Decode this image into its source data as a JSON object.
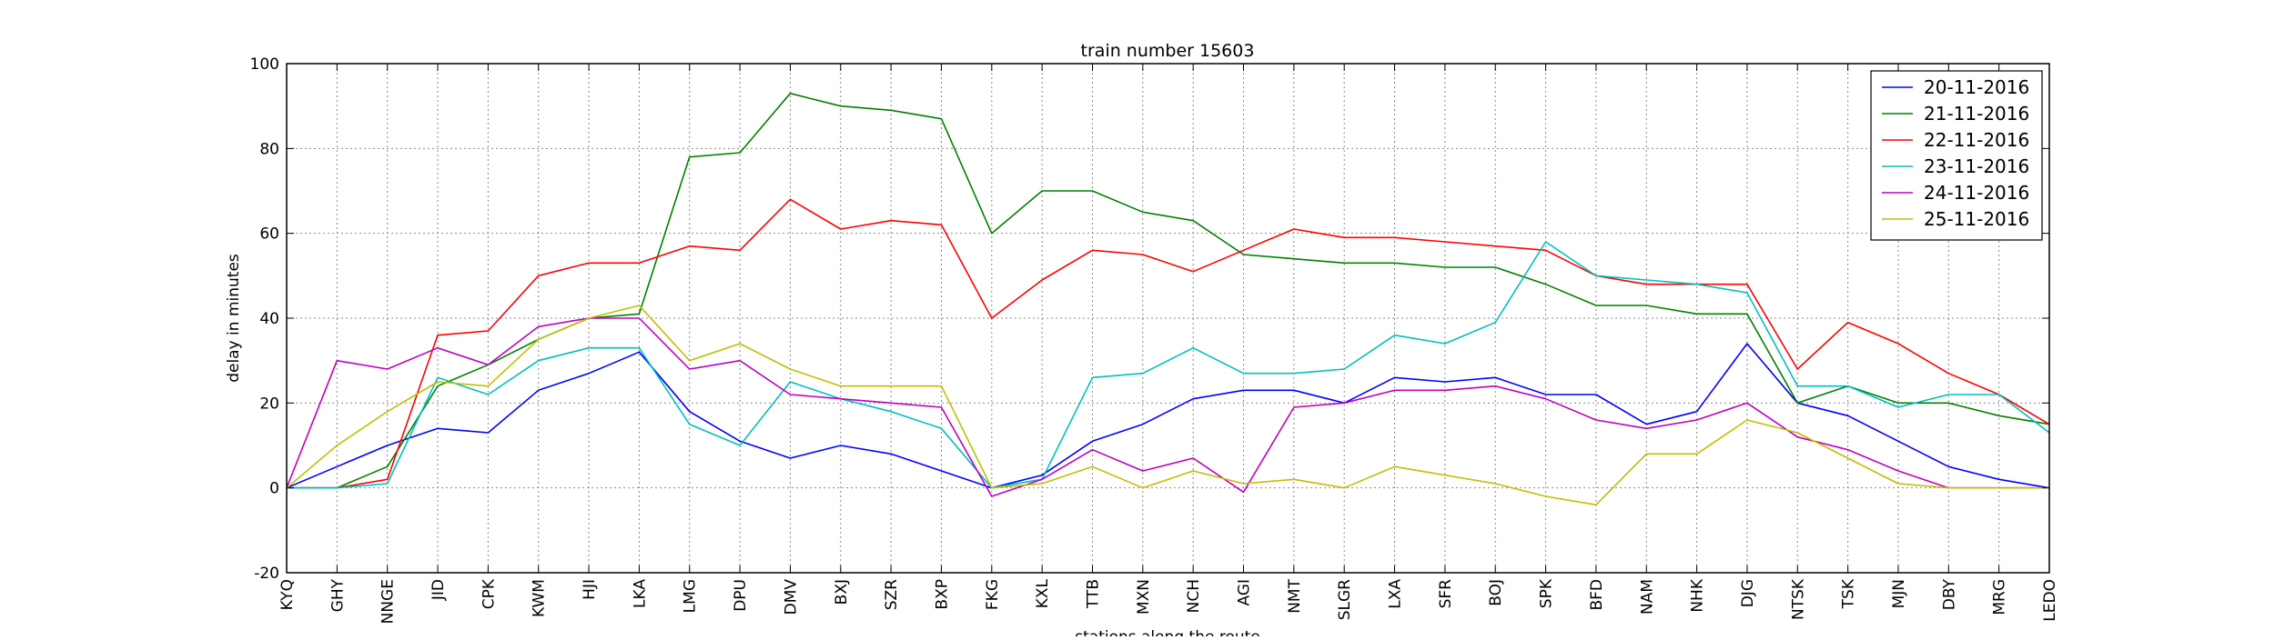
{
  "chart_data": {
    "type": "line",
    "title": "train number 15603",
    "xlabel": "stations along the route",
    "ylabel": "delay in minutes",
    "ylim": [
      -20,
      100
    ],
    "yticks": [
      -20,
      0,
      20,
      40,
      60,
      80,
      100
    ],
    "grid": true,
    "legend_position": "top-right",
    "categories": [
      "KYQ",
      "GHY",
      "NNGE",
      "JID",
      "CPK",
      "KWM",
      "HJI",
      "LKA",
      "LMG",
      "DPU",
      "DMV",
      "BXJ",
      "SZR",
      "BXP",
      "FKG",
      "KXL",
      "TTB",
      "MXN",
      "NCH",
      "AGI",
      "NMT",
      "SLGR",
      "LXA",
      "SFR",
      "BOJ",
      "SPK",
      "BFD",
      "NAM",
      "NHK",
      "DJG",
      "NTSK",
      "TSK",
      "MJN",
      "DBY",
      "MRG",
      "LEDO"
    ],
    "series": [
      {
        "name": "20-11-2016",
        "color": "#0000ff",
        "values": [
          0,
          5,
          10,
          14,
          13,
          23,
          27,
          32,
          18,
          11,
          7,
          10,
          8,
          4,
          0,
          3,
          11,
          15,
          21,
          23,
          23,
          20,
          26,
          25,
          26,
          22,
          22,
          15,
          18,
          34,
          20,
          17,
          11,
          5,
          2,
          0
        ]
      },
      {
        "name": "21-11-2016",
        "color": "#008000",
        "values": [
          0,
          0,
          5,
          24,
          29,
          35,
          40,
          41,
          78,
          79,
          93,
          90,
          89,
          87,
          60,
          70,
          70,
          65,
          63,
          55,
          54,
          53,
          53,
          52,
          52,
          48,
          43,
          43,
          41,
          41,
          20,
          24,
          20,
          20,
          17,
          15
        ]
      },
      {
        "name": "22-11-2016",
        "color": "#ff0000",
        "values": [
          0,
          0,
          2,
          36,
          37,
          50,
          53,
          53,
          57,
          56,
          68,
          61,
          63,
          62,
          40,
          49,
          56,
          55,
          51,
          56,
          61,
          59,
          59,
          58,
          57,
          56,
          50,
          48,
          48,
          48,
          28,
          39,
          34,
          27,
          22,
          15
        ]
      },
      {
        "name": "23-11-2016",
        "color": "#00bfbf",
        "values": [
          0,
          0,
          1,
          26,
          22,
          30,
          33,
          33,
          15,
          10,
          25,
          21,
          18,
          14,
          0,
          2,
          26,
          27,
          33,
          27,
          27,
          28,
          36,
          34,
          39,
          58,
          50,
          49,
          48,
          46,
          24,
          24,
          19,
          22,
          22,
          13
        ]
      },
      {
        "name": "24-11-2016",
        "color": "#bf00bf",
        "values": [
          0,
          30,
          28,
          33,
          29,
          38,
          40,
          40,
          28,
          30,
          22,
          21,
          20,
          19,
          -2,
          2,
          9,
          4,
          7,
          -1,
          19,
          20,
          23,
          23,
          24,
          21,
          16,
          14,
          16,
          20,
          12,
          9,
          4,
          0,
          0,
          0
        ]
      },
      {
        "name": "25-11-2016",
        "color": "#bfbf00",
        "values": [
          0,
          10,
          18,
          25,
          24,
          35,
          40,
          43,
          30,
          34,
          28,
          24,
          24,
          24,
          0,
          1,
          5,
          0,
          4,
          1,
          2,
          0,
          5,
          3,
          1,
          -2,
          -4,
          8,
          8,
          16,
          13,
          7,
          1,
          0,
          0,
          0
        ]
      }
    ]
  }
}
